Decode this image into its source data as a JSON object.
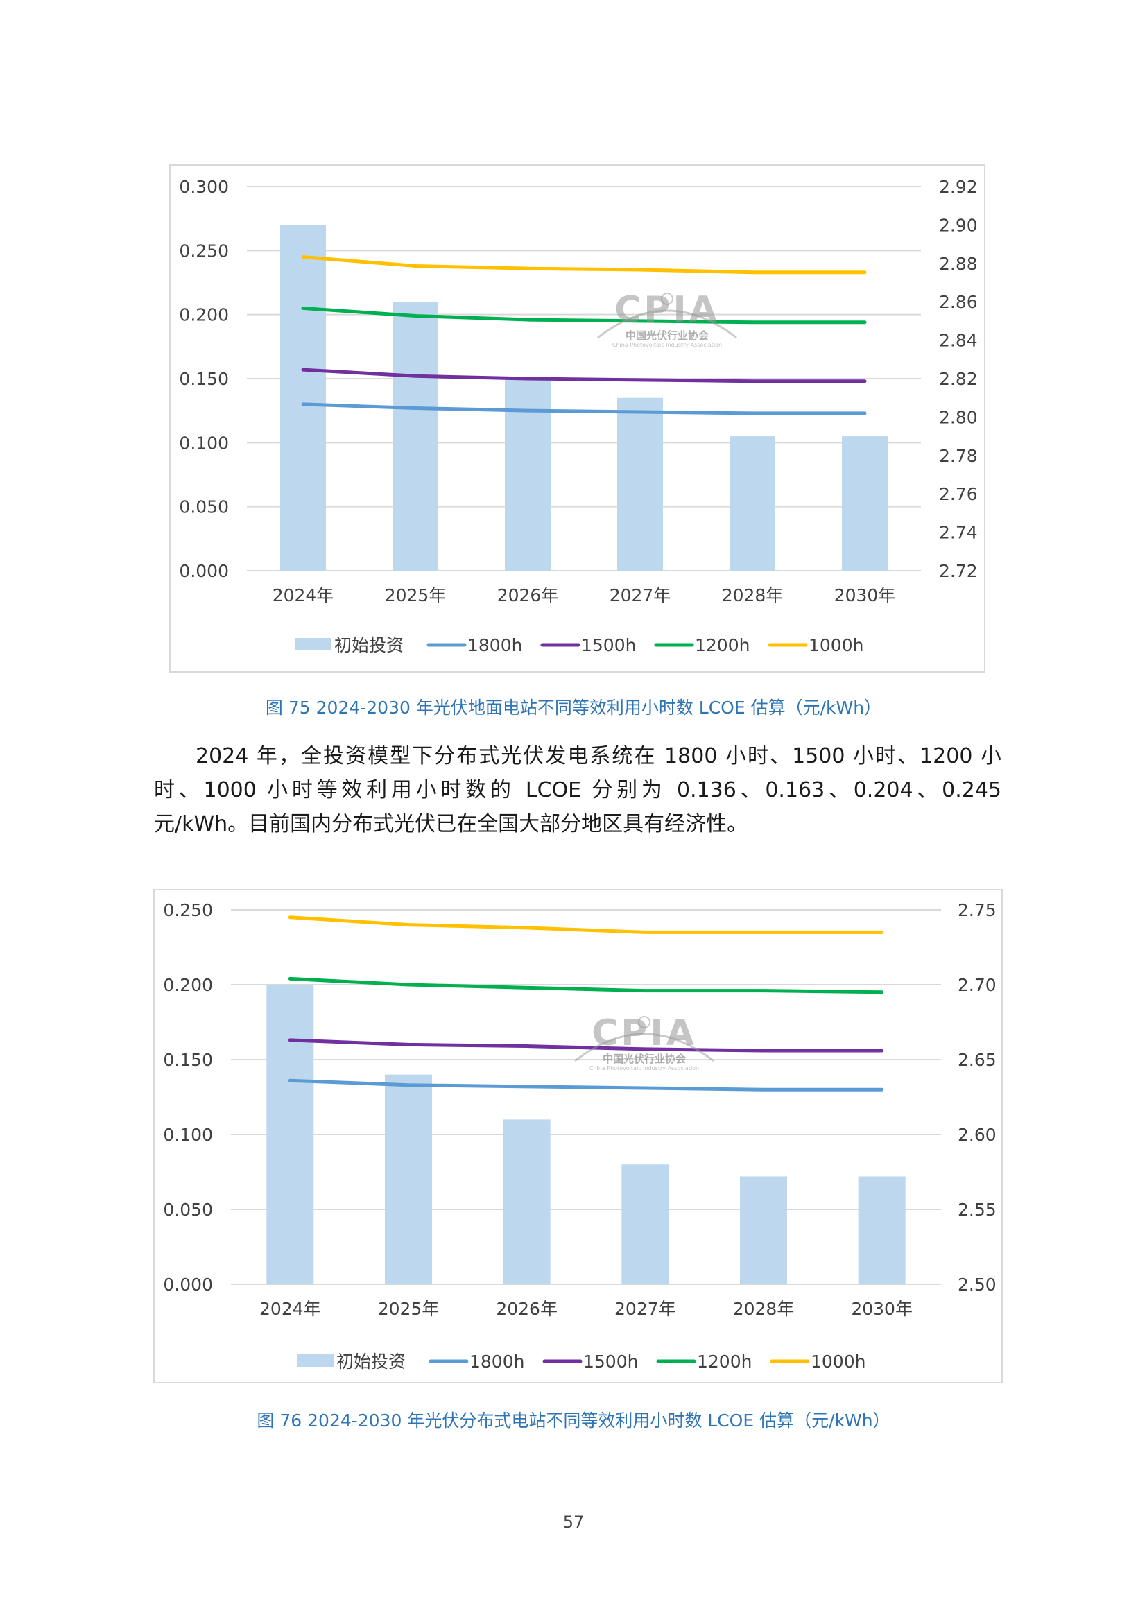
{
  "colors": {
    "invest_bar": "#bdd7ee",
    "s1800": "#5b9bd5",
    "s1500": "#7030a0",
    "s1200": "#00b050",
    "s1000": "#ffc000",
    "grid": "#d9d9d9",
    "caption": "#2e75b6"
  },
  "watermark": {
    "logo": "CPIA",
    "name_cn": "中国光伏行业协会",
    "name_en": "China Photovoltaic Industry Association"
  },
  "figures": [
    {
      "caption": "图 75    2024-2030 年光伏地面电站不同等效利用小时数 LCOE 估算（元/kWh）"
    },
    {
      "caption": "图 76    2024-2030 年光伏分布式电站不同等效利用小时数 LCOE 估算（元/kWh）"
    }
  ],
  "paragraph": "2024 年，全投资模型下分布式光伏发电系统在 1800 小时、1500 小时、1200 小时、1000 小时等效利用小时数的 LCOE 分别为 0.136、0.163、0.204、0.245 元/kWh。目前国内分布式光伏已在全国大部分地区具有经济性。",
  "page_number": "57",
  "chart_data": [
    {
      "type": "bar",
      "categories": [
        "2024年",
        "2025年",
        "2026年",
        "2027年",
        "2028年",
        "2030年"
      ],
      "y_left": {
        "ylim": [
          0,
          0.3
        ],
        "ticks": [
          "0.000",
          "0.050",
          "0.100",
          "0.150",
          "0.200",
          "0.250",
          "0.300"
        ]
      },
      "y_right": {
        "ylim": [
          2.72,
          2.92
        ],
        "ticks": [
          "2.72",
          "2.74",
          "2.76",
          "2.78",
          "2.80",
          "2.82",
          "2.84",
          "2.86",
          "2.88",
          "2.90",
          "2.92"
        ]
      },
      "grid": true,
      "legend_position": "bottom",
      "series": [
        {
          "name": "初始投资",
          "kind": "bar",
          "axis": "right",
          "color": "#bdd7ee",
          "values": [
            2.9,
            2.86,
            2.82,
            2.81,
            2.79,
            2.79
          ]
        },
        {
          "name": "1800h",
          "kind": "line",
          "axis": "left",
          "color": "#5b9bd5",
          "values": [
            0.13,
            0.127,
            0.125,
            0.124,
            0.123,
            0.123
          ]
        },
        {
          "name": "1500h",
          "kind": "line",
          "axis": "left",
          "color": "#7030a0",
          "values": [
            0.157,
            0.152,
            0.15,
            0.149,
            0.148,
            0.148
          ]
        },
        {
          "name": "1200h",
          "kind": "line",
          "axis": "left",
          "color": "#00b050",
          "values": [
            0.205,
            0.199,
            0.196,
            0.195,
            0.194,
            0.194
          ]
        },
        {
          "name": "1000h",
          "kind": "line",
          "axis": "left",
          "color": "#ffc000",
          "values": [
            0.245,
            0.238,
            0.236,
            0.235,
            0.233,
            0.233
          ]
        }
      ]
    },
    {
      "type": "bar",
      "categories": [
        "2024年",
        "2025年",
        "2026年",
        "2027年",
        "2028年",
        "2030年"
      ],
      "y_left": {
        "ylim": [
          0,
          0.25
        ],
        "ticks": [
          "0.000",
          "0.050",
          "0.100",
          "0.150",
          "0.200",
          "0.250"
        ]
      },
      "y_right": {
        "ylim": [
          2.5,
          2.75
        ],
        "ticks": [
          "2.50",
          "2.55",
          "2.60",
          "2.65",
          "2.70",
          "2.75"
        ]
      },
      "grid": true,
      "legend_position": "bottom",
      "series": [
        {
          "name": "初始投资",
          "kind": "bar",
          "axis": "right",
          "color": "#bdd7ee",
          "values": [
            2.7,
            2.64,
            2.61,
            2.58,
            2.572,
            2.572
          ]
        },
        {
          "name": "1800h",
          "kind": "line",
          "axis": "left",
          "color": "#5b9bd5",
          "values": [
            0.136,
            0.133,
            0.132,
            0.131,
            0.13,
            0.13
          ]
        },
        {
          "name": "1500h",
          "kind": "line",
          "axis": "left",
          "color": "#7030a0",
          "values": [
            0.163,
            0.16,
            0.159,
            0.157,
            0.156,
            0.156
          ]
        },
        {
          "name": "1200h",
          "kind": "line",
          "axis": "left",
          "color": "#00b050",
          "values": [
            0.204,
            0.2,
            0.198,
            0.196,
            0.196,
            0.195
          ]
        },
        {
          "name": "1000h",
          "kind": "line",
          "axis": "left",
          "color": "#ffc000",
          "values": [
            0.245,
            0.24,
            0.238,
            0.235,
            0.235,
            0.235
          ]
        }
      ]
    }
  ]
}
